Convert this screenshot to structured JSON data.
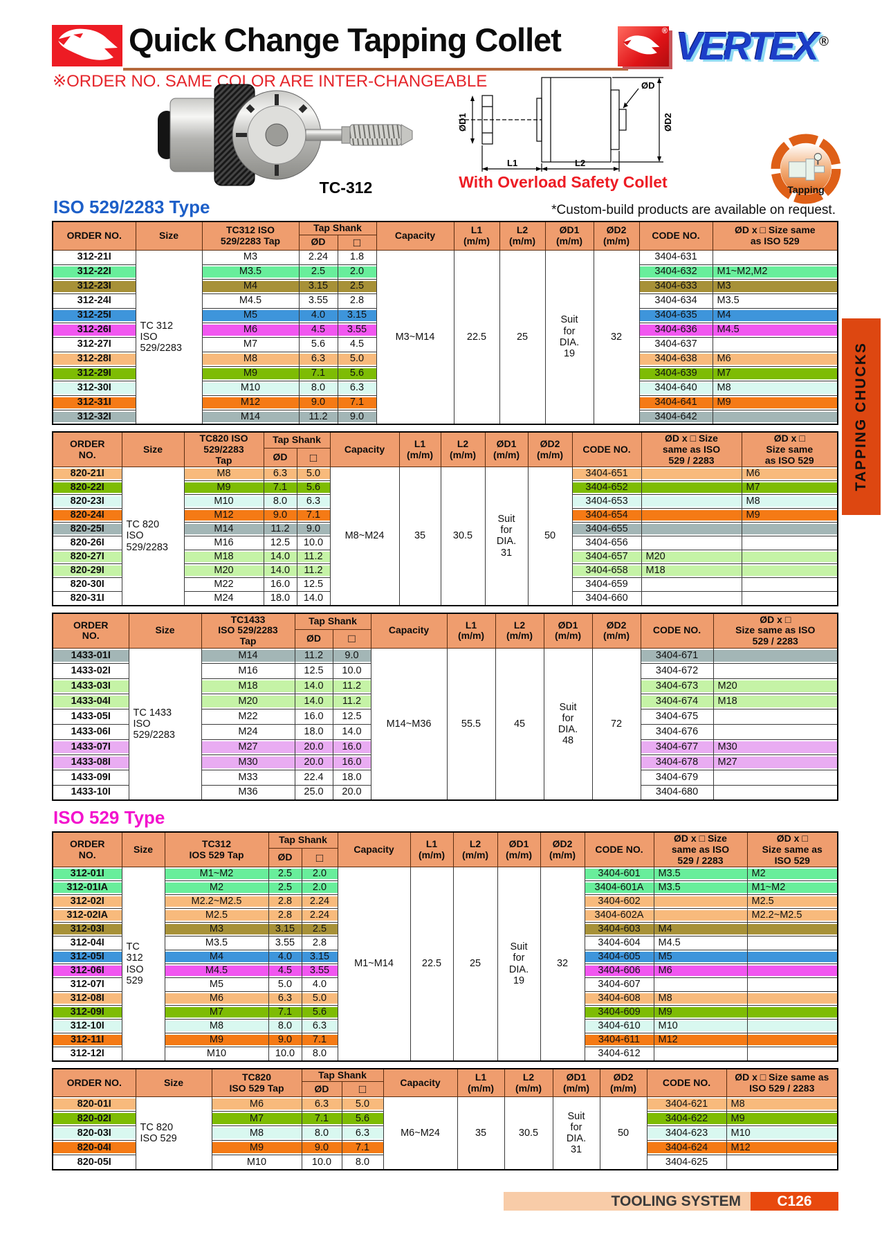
{
  "header": {
    "title": "Quick Change Tapping Collet",
    "brand": "VERTEX",
    "reg_mark": "®",
    "subtitle": "※ORDER NO. SAME COLOR ARE INTER-CHANGEABLE",
    "product_label": "TC-312",
    "overload_note": "With Overload Safety Collet",
    "badge_label": "Tapping"
  },
  "diagram_labels": {
    "d1": "ØD1",
    "d": "ØD",
    "d2": "ØD2",
    "l1": "L1",
    "l2": "L2"
  },
  "sections": {
    "iso_529_2283": "ISO 529/2283 Type",
    "iso_529": "ISO 529 Type",
    "custom_note": "*Custom-build products are available on request."
  },
  "sidebar_label": "TAPPING CHUCKS",
  "footer": {
    "label": "TOOLING SYSTEM",
    "code": "C126"
  },
  "colors": {
    "white": "#FFFFFF",
    "mint": "#68EE9B",
    "olive": "#A79138",
    "blue": "#3E95DB",
    "magenta": "#F156F0",
    "peach": "#F8BA7C",
    "green": "#7EBC04",
    "cyan": "#D9F8F0",
    "orange": "#F57A15",
    "gray": "#A3B6B6",
    "palegreen": "#C5F3A6",
    "plum": "#E9ACF2",
    "header_bg": "#EF9D6E",
    "section1": "#1D5FC8",
    "section2": "#F313CD",
    "accent_red": "#E5252B",
    "sidebar_bg": "#DD4711",
    "footer_bar": "#F8CCA8",
    "footer_code_bg": "#E8490E"
  },
  "tables": [
    {
      "name": "tc312-iso-529-2283",
      "header": {
        "order": "ORDER NO.",
        "size": "Size",
        "tap": "TC312 ISO\n529/2283 Tap",
        "tap_shank": "Tap Shank",
        "od": "ØD",
        "sq": "□",
        "capacity": "Capacity",
        "l1": "L1\n(m/m)",
        "l2": "L2\n(m/m)",
        "od1": "ØD1\n(m/m)",
        "od2": "ØD2\n(m/m)",
        "code": "CODE NO.",
        "same1": "ØD x □  Size same\nas ISO 529",
        "same2": null
      },
      "merged": {
        "size": "TC 312\nISO\n529/2283",
        "capacity": "M3~M14",
        "l1": "22.5",
        "l2": "25",
        "od1": "Suit\nfor\nDIA.\n19",
        "od2": "32"
      },
      "rows": [
        {
          "order": "312-21I",
          "color": "white",
          "tap": "M3",
          "od": "2.24",
          "sq": "1.8",
          "code": "3404-631",
          "same1": ""
        },
        {
          "order": "312-22I",
          "color": "mint",
          "tap": "M3.5",
          "od": "2.5",
          "sq": "2.0",
          "code": "3404-632",
          "same1": "M1~M2,M2"
        },
        {
          "order": "312-23I",
          "color": "olive",
          "tap": "M4",
          "od": "3.15",
          "sq": "2.5",
          "code": "3404-633",
          "same1": "M3"
        },
        {
          "order": "312-24I",
          "color": "white",
          "tap": "M4.5",
          "od": "3.55",
          "sq": "2.8",
          "code": "3404-634",
          "same1": "M3.5"
        },
        {
          "order": "312-25I",
          "color": "blue",
          "tap": "M5",
          "od": "4.0",
          "sq": "3.15",
          "code": "3404-635",
          "same1": "M4"
        },
        {
          "order": "312-26I",
          "color": "magenta",
          "tap": "M6",
          "od": "4.5",
          "sq": "3.55",
          "code": "3404-636",
          "same1": "M4.5"
        },
        {
          "order": "312-27I",
          "color": "white",
          "tap": "M7",
          "od": "5.6",
          "sq": "4.5",
          "code": "3404-637",
          "same1": ""
        },
        {
          "order": "312-28I",
          "color": "peach",
          "tap": "M8",
          "od": "6.3",
          "sq": "5.0",
          "code": "3404-638",
          "same1": "M6"
        },
        {
          "order": "312-29I",
          "color": "green",
          "tap": "M9",
          "od": "7.1",
          "sq": "5.6",
          "code": "3404-639",
          "same1": "M7"
        },
        {
          "order": "312-30I",
          "color": "cyan",
          "tap": "M10",
          "od": "8.0",
          "sq": "6.3",
          "code": "3404-640",
          "same1": "M8"
        },
        {
          "order": "312-31I",
          "color": "orange",
          "tap": "M12",
          "od": "9.0",
          "sq": "7.1",
          "code": "3404-641",
          "same1": "M9"
        },
        {
          "order": "312-32I",
          "color": "gray",
          "tap": "M14",
          "od": "11.2",
          "sq": "9.0",
          "code": "3404-642",
          "same1": ""
        }
      ]
    },
    {
      "name": "tc820-iso-529-2283",
      "header": {
        "order": "ORDER\nNO.",
        "size": "Size",
        "tap": "TC820 ISO\n529/2283\nTap",
        "tap_shank": "Tap Shank",
        "od": "ØD",
        "sq": "□",
        "capacity": "Capacity",
        "l1": "L1\n(m/m)",
        "l2": "L2\n(m/m)",
        "od1": "ØD1\n(m/m)",
        "od2": "ØD2\n(m/m)",
        "code": "CODE NO.",
        "same1": "ØD x □ Size\nsame as ISO\n529 / 2283",
        "same2": "ØD x □\nSize same\nas ISO 529"
      },
      "merged": {
        "size": "TC 820\nISO\n529/2283",
        "capacity": "M8~M24",
        "l1": "35",
        "l2": "30.5",
        "od1": "Suit\nfor\nDIA.\n31",
        "od2": "50"
      },
      "rows": [
        {
          "order": "820-21I",
          "color": "peach",
          "tap": "M8",
          "od": "6.3",
          "sq": "5.0",
          "code": "3404-651",
          "same1": "",
          "same2": "M6"
        },
        {
          "order": "820-22I",
          "color": "green",
          "tap": "M9",
          "od": "7.1",
          "sq": "5.6",
          "code": "3404-652",
          "same1": "",
          "same2": "M7"
        },
        {
          "order": "820-23I",
          "color": "cyan",
          "tap": "M10",
          "od": "8.0",
          "sq": "6.3",
          "code": "3404-653",
          "same1": "",
          "same2": "M8"
        },
        {
          "order": "820-24I",
          "color": "orange",
          "tap": "M12",
          "od": "9.0",
          "sq": "7.1",
          "code": "3404-654",
          "same1": "",
          "same2": "M9"
        },
        {
          "order": "820-25I",
          "color": "gray",
          "tap": "M14",
          "od": "11.2",
          "sq": "9.0",
          "code": "3404-655",
          "same1": "",
          "same2": ""
        },
        {
          "order": "820-26I",
          "color": "white",
          "tap": "M16",
          "od": "12.5",
          "sq": "10.0",
          "code": "3404-656",
          "same1": "",
          "same2": ""
        },
        {
          "order": "820-27I",
          "color": "palegreen",
          "tap": "M18",
          "od": "14.0",
          "sq": "11.2",
          "code": "3404-657",
          "same1": "M20",
          "same2": ""
        },
        {
          "order": "820-29I",
          "color": "palegreen",
          "tap": "M20",
          "od": "14.0",
          "sq": "11.2",
          "code": "3404-658",
          "same1": "M18",
          "same2": ""
        },
        {
          "order": "820-30I",
          "color": "white",
          "tap": "M22",
          "od": "16.0",
          "sq": "12.5",
          "code": "3404-659",
          "same1": "",
          "same2": ""
        },
        {
          "order": "820-31I",
          "color": "white",
          "tap": "M24",
          "od": "18.0",
          "sq": "14.0",
          "code": "3404-660",
          "same1": "",
          "same2": ""
        }
      ]
    },
    {
      "name": "tc1433-iso-529-2283",
      "header": {
        "order": "ORDER\nNO.",
        "size": "Size",
        "tap": "TC1433\nISO 529/2283\nTap",
        "tap_shank": "Tap Shank",
        "od": "ØD",
        "sq": "□",
        "capacity": "Capacity",
        "l1": "L1\n(m/m)",
        "l2": "L2\n(m/m)",
        "od1": "ØD1\n(m/m)",
        "od2": "ØD2\n(m/m)",
        "code": "CODE NO.",
        "same1": "ØD x □\nSize same as ISO\n529 / 2283",
        "same2": null
      },
      "merged": {
        "size": "TC 1433\nISO\n529/2283",
        "capacity": "M14~M36",
        "l1": "55.5",
        "l2": "45",
        "od1": "Suit\nfor\nDIA.\n48",
        "od2": "72"
      },
      "rows": [
        {
          "order": "1433-01I",
          "color": "gray",
          "tap": "M14",
          "od": "11.2",
          "sq": "9.0",
          "code": "3404-671",
          "same1": ""
        },
        {
          "order": "1433-02I",
          "color": "white",
          "tap": "M16",
          "od": "12.5",
          "sq": "10.0",
          "code": "3404-672",
          "same1": ""
        },
        {
          "order": "1433-03I",
          "color": "palegreen",
          "tap": "M18",
          "od": "14.0",
          "sq": "11.2",
          "code": "3404-673",
          "same1": "M20"
        },
        {
          "order": "1433-04I",
          "color": "palegreen",
          "tap": "M20",
          "od": "14.0",
          "sq": "11.2",
          "code": "3404-674",
          "same1": "M18"
        },
        {
          "order": "1433-05I",
          "color": "white",
          "tap": "M22",
          "od": "16.0",
          "sq": "12.5",
          "code": "3404-675",
          "same1": ""
        },
        {
          "order": "1433-06I",
          "color": "white",
          "tap": "M24",
          "od": "18.0",
          "sq": "14.0",
          "code": "3404-676",
          "same1": ""
        },
        {
          "order": "1433-07I",
          "color": "plum",
          "tap": "M27",
          "od": "20.0",
          "sq": "16.0",
          "code": "3404-677",
          "same1": "M30"
        },
        {
          "order": "1433-08I",
          "color": "plum",
          "tap": "M30",
          "od": "20.0",
          "sq": "16.0",
          "code": "3404-678",
          "same1": "M27"
        },
        {
          "order": "1433-09I",
          "color": "white",
          "tap": "M33",
          "od": "22.4",
          "sq": "18.0",
          "code": "3404-679",
          "same1": ""
        },
        {
          "order": "1433-10I",
          "color": "white",
          "tap": "M36",
          "od": "25.0",
          "sq": "20.0",
          "code": "3404-680",
          "same1": ""
        }
      ]
    },
    {
      "name": "tc312-iso-529",
      "header": {
        "order": "ORDER\nNO.",
        "size": "Size",
        "tap": "TC312\nIOS 529 Tap",
        "tap_shank": "Tap Shank",
        "od": "ØD",
        "sq": "□",
        "capacity": "Capacity",
        "l1": "L1\n(m/m)",
        "l2": "L2\n(m/m)",
        "od1": "ØD1\n(m/m)",
        "od2": "ØD2\n(m/m)",
        "code": "CODE NO.",
        "same1": "ØD x □ Size\nsame as ISO\n529 / 2283",
        "same2": "ØD x □\nSize same as\nISO 529"
      },
      "merged": {
        "size": "TC\n312\nISO\n529",
        "capacity": "M1~M14",
        "l1": "22.5",
        "l2": "25",
        "od1": "Suit\nfor\nDIA.\n19",
        "od2": "32"
      },
      "rows": [
        {
          "order": "312-01I",
          "color": "mint",
          "tap": "M1~M2",
          "od": "2.5",
          "sq": "2.0",
          "code": "3404-601",
          "same1": "M3.5",
          "same2": "M2"
        },
        {
          "order": "312-01IA",
          "color": "mint",
          "tap": "M2",
          "od": "2.5",
          "sq": "2.0",
          "code": "3404-601A",
          "same1": "M3.5",
          "same2": "M1~M2"
        },
        {
          "order": "312-02I",
          "color": "peach",
          "tap": "M2.2~M2.5",
          "od": "2.8",
          "sq": "2.24",
          "code": "3404-602",
          "same1": "",
          "same2": "M2.5"
        },
        {
          "order": "312-02IA",
          "color": "peach",
          "tap": "M2.5",
          "od": "2.8",
          "sq": "2.24",
          "code": "3404-602A",
          "same1": "",
          "same2": "M2.2~M2.5"
        },
        {
          "order": "312-03I",
          "color": "olive",
          "tap": "M3",
          "od": "3.15",
          "sq": "2.5",
          "code": "3404-603",
          "same1": "M4",
          "same2": ""
        },
        {
          "order": "312-04I",
          "color": "white",
          "tap": "M3.5",
          "od": "3.55",
          "sq": "2.8",
          "code": "3404-604",
          "same1": "M4.5",
          "same2": ""
        },
        {
          "order": "312-05I",
          "color": "blue",
          "tap": "M4",
          "od": "4.0",
          "sq": "3.15",
          "code": "3404-605",
          "same1": "M5",
          "same2": ""
        },
        {
          "order": "312-06I",
          "color": "magenta",
          "tap": "M4.5",
          "od": "4.5",
          "sq": "3.55",
          "code": "3404-606",
          "same1": "M6",
          "same2": ""
        },
        {
          "order": "312-07I",
          "color": "white",
          "tap": "M5",
          "od": "5.0",
          "sq": "4.0",
          "code": "3404-607",
          "same1": "",
          "same2": ""
        },
        {
          "order": "312-08I",
          "color": "peach",
          "tap": "M6",
          "od": "6.3",
          "sq": "5.0",
          "code": "3404-608",
          "same1": "M8",
          "same2": ""
        },
        {
          "order": "312-09I",
          "color": "green",
          "tap": "M7",
          "od": "7.1",
          "sq": "5.6",
          "code": "3404-609",
          "same1": "M9",
          "same2": ""
        },
        {
          "order": "312-10I",
          "color": "cyan",
          "tap": "M8",
          "od": "8.0",
          "sq": "6.3",
          "code": "3404-610",
          "same1": "M10",
          "same2": ""
        },
        {
          "order": "312-11I",
          "color": "orange",
          "tap": "M9",
          "od": "9.0",
          "sq": "7.1",
          "code": "3404-611",
          "same1": "M12",
          "same2": ""
        },
        {
          "order": "312-12I",
          "color": "white",
          "tap": "M10",
          "od": "10.0",
          "sq": "8.0",
          "code": "3404-612",
          "same1": "",
          "same2": ""
        }
      ]
    },
    {
      "name": "tc820-iso-529",
      "header": {
        "order": "ORDER NO.",
        "size": "Size",
        "tap": "TC820\nISO 529 Tap",
        "tap_shank": "Tap Shank",
        "od": "ØD",
        "sq": "□",
        "capacity": "Capacity",
        "l1": "L1\n(m/m)",
        "l2": "L2\n(m/m)",
        "od1": "ØD1\n(m/m)",
        "od2": "ØD2\n(m/m)",
        "code": "CODE NO.",
        "same1": "ØD x □ Size same as\nISO 529 / 2283",
        "same2": null
      },
      "merged": {
        "size": "TC 820\nISO 529",
        "capacity": "M6~M24",
        "l1": "35",
        "l2": "30.5",
        "od1": "Suit\nfor\nDIA.\n31",
        "od2": "50"
      },
      "rows": [
        {
          "order": "820-01I",
          "color": "peach",
          "tap": "M6",
          "od": "6.3",
          "sq": "5.0",
          "code": "3404-621",
          "same1": "M8"
        },
        {
          "order": "820-02I",
          "color": "green",
          "tap": "M7",
          "od": "7.1",
          "sq": "5.6",
          "code": "3404-622",
          "same1": "M9"
        },
        {
          "order": "820-03I",
          "color": "cyan",
          "tap": "M8",
          "od": "8.0",
          "sq": "6.3",
          "code": "3404-623",
          "same1": "M10"
        },
        {
          "order": "820-04I",
          "color": "orange",
          "tap": "M9",
          "od": "9.0",
          "sq": "7.1",
          "code": "3404-624",
          "same1": "M12"
        },
        {
          "order": "820-05I",
          "color": "white",
          "tap": "M10",
          "od": "10.0",
          "sq": "8.0",
          "code": "3404-625",
          "same1": ""
        }
      ]
    }
  ]
}
